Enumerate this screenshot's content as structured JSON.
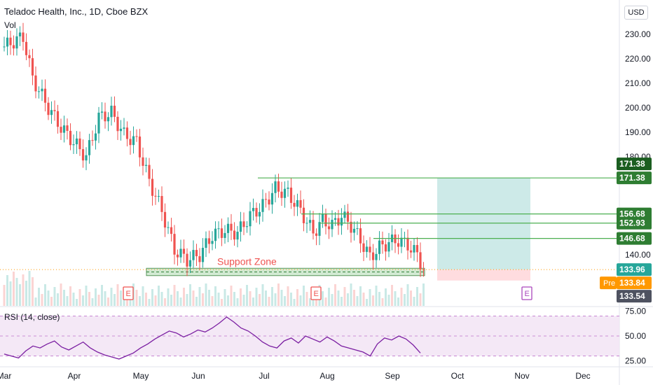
{
  "header": {
    "symbol_title": "Teladoc Health, Inc., 1D, Cboe BZX",
    "volume_label": "Vol",
    "currency_button": "USD"
  },
  "rsi_panel": {
    "label": "RSI (14, close)",
    "ticks": [
      "75.00",
      "50.00",
      "25.00"
    ]
  },
  "colors": {
    "up": "#26a69a",
    "down": "#ef5350",
    "level_line": "#4caf50",
    "support_zone": "#c8e6c9",
    "target_zone": "#b2dfdb",
    "stop_zone": "#ffcdd2",
    "rsi_line": "#7b1fa2",
    "rsi_band": "#f3e5f5",
    "pre_badge": "#ff9800",
    "earnings": "#ef5350",
    "earnings_future": "#ab47bc"
  },
  "chart_data": {
    "type": "candlestick",
    "title": "Teladoc Health, Inc., 1D, Cboe BZX",
    "y_axis_ticks": [
      "230.00",
      "220.00",
      "210.00",
      "200.00",
      "190.00",
      "180.00",
      "140.00"
    ],
    "x_axis_ticks": [
      "Mar",
      "Apr",
      "May",
      "Jun",
      "Jul",
      "Aug",
      "Sep",
      "Oct",
      "Nov",
      "Dec"
    ],
    "ylim": [
      128,
      236
    ],
    "price_path": [
      {
        "t": 0,
        "p": 225
      },
      {
        "t": 6,
        "p": 229
      },
      {
        "t": 9,
        "p": 212
      },
      {
        "t": 14,
        "p": 200
      },
      {
        "t": 18,
        "p": 192
      },
      {
        "t": 22,
        "p": 186
      },
      {
        "t": 26,
        "p": 180
      },
      {
        "t": 30,
        "p": 196
      },
      {
        "t": 34,
        "p": 198
      },
      {
        "t": 38,
        "p": 189
      },
      {
        "t": 42,
        "p": 186
      },
      {
        "t": 46,
        "p": 170
      },
      {
        "t": 50,
        "p": 158
      },
      {
        "t": 54,
        "p": 142
      },
      {
        "t": 58,
        "p": 138
      },
      {
        "t": 62,
        "p": 140
      },
      {
        "t": 66,
        "p": 148
      },
      {
        "t": 70,
        "p": 150
      },
      {
        "t": 74,
        "p": 149
      },
      {
        "t": 78,
        "p": 156
      },
      {
        "t": 82,
        "p": 160
      },
      {
        "t": 86,
        "p": 167
      },
      {
        "t": 90,
        "p": 165
      },
      {
        "t": 94,
        "p": 158
      },
      {
        "t": 98,
        "p": 149
      },
      {
        "t": 101,
        "p": 154
      },
      {
        "t": 104,
        "p": 152
      },
      {
        "t": 107,
        "p": 156
      },
      {
        "t": 110,
        "p": 152
      },
      {
        "t": 113,
        "p": 146
      },
      {
        "t": 116,
        "p": 139
      },
      {
        "t": 119,
        "p": 143
      },
      {
        "t": 122,
        "p": 145
      },
      {
        "t": 125,
        "p": 146
      },
      {
        "t": 128,
        "p": 144
      },
      {
        "t": 131,
        "p": 140
      },
      {
        "t": 133,
        "p": 134
      }
    ],
    "horizontal_levels": [
      {
        "label": "171.38",
        "value": 171.38
      },
      {
        "label": "156.68",
        "value": 156.68
      },
      {
        "label": "152.93",
        "value": 152.93
      },
      {
        "label": "146.68",
        "value": 146.68
      }
    ],
    "last_price": {
      "label": "133.96",
      "value": 133.96
    },
    "pre_market": {
      "tag": "Pre",
      "label": "133.84",
      "value": 133.84
    },
    "extra_price_label": {
      "label": "133.54",
      "value": 133.54
    },
    "target_marker": {
      "label": "171.38",
      "value": 171.38
    },
    "support_zone": {
      "label": "Support Zone",
      "low": 131.5,
      "high": 134.5
    },
    "position": {
      "entry": 133.96,
      "target": 171.38,
      "stop": 129.5
    },
    "earnings_markers": [
      {
        "label": "E",
        "month": "May"
      },
      {
        "label": "E",
        "month": "Aug"
      },
      {
        "label": "E",
        "month": "Nov"
      }
    ],
    "rsi": {
      "levels": [
        70,
        50,
        30
      ],
      "ylim": [
        22,
        78
      ],
      "values": [
        32,
        30,
        28,
        35,
        40,
        38,
        42,
        45,
        39,
        36,
        40,
        44,
        38,
        34,
        31,
        29,
        27,
        30,
        33,
        38,
        42,
        47,
        51,
        55,
        53,
        49,
        52,
        56,
        54,
        58,
        63,
        69,
        64,
        58,
        55,
        50,
        44,
        40,
        38,
        45,
        48,
        43,
        50,
        47,
        44,
        49,
        45,
        40,
        38,
        36,
        34,
        30,
        42,
        48,
        46,
        50,
        47,
        41,
        33
      ]
    }
  }
}
